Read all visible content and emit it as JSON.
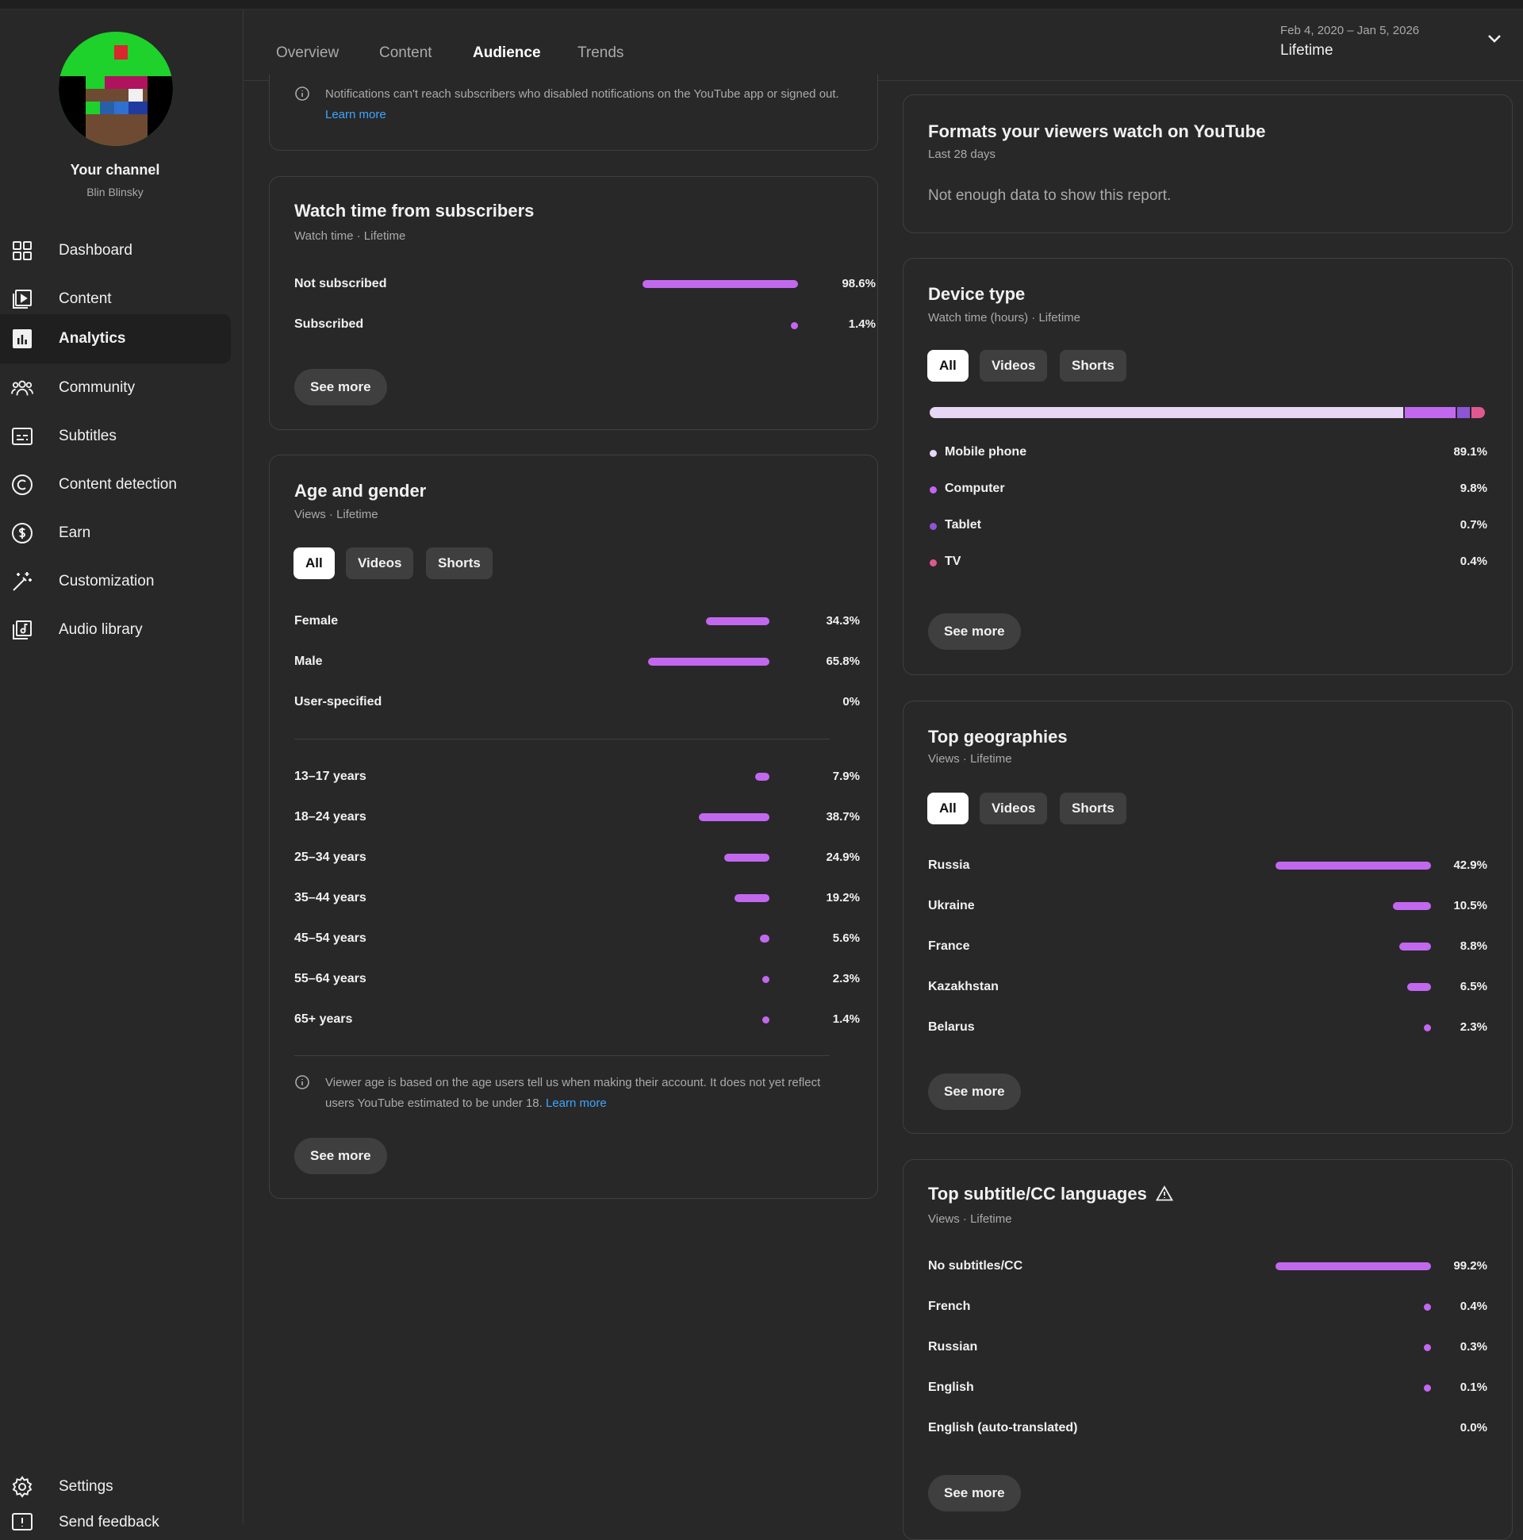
{
  "sidebar": {
    "channel_title": "Your channel",
    "channel_name": "Blin Blinsky",
    "items": [
      {
        "label": "Dashboard",
        "icon": "dashboard-icon"
      },
      {
        "label": "Content",
        "icon": "content-icon"
      },
      {
        "label": "Analytics",
        "icon": "analytics-icon"
      },
      {
        "label": "Community",
        "icon": "community-icon"
      },
      {
        "label": "Subtitles",
        "icon": "subtitles-icon"
      },
      {
        "label": "Content detection",
        "icon": "copyright-icon"
      },
      {
        "label": "Earn",
        "icon": "dollar-icon"
      },
      {
        "label": "Customization",
        "icon": "magic-wand-icon"
      },
      {
        "label": "Audio library",
        "icon": "audio-library-icon"
      }
    ],
    "bottom": {
      "settings": "Settings",
      "feedback": "Send feedback"
    },
    "active_index": 2
  },
  "header": {
    "tabs": [
      "Overview",
      "Content",
      "Audience",
      "Trends"
    ],
    "active_tab": "Audience",
    "date_range": "Feb 4, 2020 – Jan 5, 2026",
    "period": "Lifetime"
  },
  "notif_card": {
    "text": "Notifications can't reach subscribers who disabled notifications on the YouTube app or signed out.",
    "link": "Learn more"
  },
  "watch_subs": {
    "title": "Watch time from subscribers",
    "subtitle": "Watch time · Lifetime",
    "rows": [
      {
        "label": "Not subscribed",
        "value": "98.6%",
        "pct": 98.6
      },
      {
        "label": "Subscribed",
        "value": "1.4%",
        "pct": 1.4
      }
    ],
    "button": "See more"
  },
  "age_gender": {
    "title": "Age and gender",
    "subtitle": "Views · Lifetime",
    "chips": [
      "All",
      "Videos",
      "Shorts"
    ],
    "gender": [
      {
        "label": "Female",
        "value": "34.3%",
        "pct": 34.3
      },
      {
        "label": "Male",
        "value": "65.8%",
        "pct": 65.8
      },
      {
        "label": "User-specified",
        "value": "0%",
        "pct": 0
      }
    ],
    "ages": [
      {
        "label": "13–17 years",
        "value": "7.9%",
        "pct": 7.9
      },
      {
        "label": "18–24 years",
        "value": "38.7%",
        "pct": 38.7
      },
      {
        "label": "25–34 years",
        "value": "24.9%",
        "pct": 24.9
      },
      {
        "label": "35–44 years",
        "value": "19.2%",
        "pct": 19.2
      },
      {
        "label": "45–54 years",
        "value": "5.6%",
        "pct": 5.6
      },
      {
        "label": "55–64 years",
        "value": "2.3%",
        "pct": 2.3
      },
      {
        "label": "65+ years",
        "value": "1.4%",
        "pct": 1.4
      }
    ],
    "note": "Viewer age is based on the age users tell us when making their account. It does not yet reflect users YouTube estimated to be under 18.",
    "note_link": "Learn more",
    "button": "See more"
  },
  "formats": {
    "title": "Formats your viewers watch on YouTube",
    "subtitle": "Last 28 days",
    "message": "Not enough data to show this report."
  },
  "device": {
    "title": "Device type",
    "subtitle": "Watch time (hours) · Lifetime",
    "chips": [
      "All",
      "Videos",
      "Shorts"
    ],
    "rows": [
      {
        "label": "Mobile phone",
        "value": "89.1%",
        "pct": 89.1,
        "color": "#e8d6f5"
      },
      {
        "label": "Computer",
        "value": "9.8%",
        "pct": 9.8,
        "color": "#c268ef"
      },
      {
        "label": "Tablet",
        "value": "0.7%",
        "pct": 0.7,
        "color": "#8e54d6"
      },
      {
        "label": "TV",
        "value": "0.4%",
        "pct": 0.4,
        "color": "#e0588f"
      }
    ],
    "button": "See more"
  },
  "geo": {
    "title": "Top geographies",
    "subtitle": "Views · Lifetime",
    "chips": [
      "All",
      "Videos",
      "Shorts"
    ],
    "rows": [
      {
        "label": "Russia",
        "value": "42.9%",
        "pct": 42.9
      },
      {
        "label": "Ukraine",
        "value": "10.5%",
        "pct": 10.5
      },
      {
        "label": "France",
        "value": "8.8%",
        "pct": 8.8
      },
      {
        "label": "Kazakhstan",
        "value": "6.5%",
        "pct": 6.5
      },
      {
        "label": "Belarus",
        "value": "2.3%",
        "pct": 2.3
      }
    ],
    "button": "See more"
  },
  "subs_lang": {
    "title": "Top subtitle/CC languages",
    "subtitle": "Views · Lifetime",
    "rows": [
      {
        "label": "No subtitles/CC",
        "value": "99.2%",
        "pct": 99.2
      },
      {
        "label": "French",
        "value": "0.4%",
        "pct": 0.4
      },
      {
        "label": "Russian",
        "value": "0.3%",
        "pct": 0.3
      },
      {
        "label": "English",
        "value": "0.1%",
        "pct": 0.1
      },
      {
        "label": "English (auto-translated)",
        "value": "0.0%",
        "pct": 0.0
      }
    ],
    "button": "See more"
  },
  "colors": {
    "accent": "#c268ef",
    "link": "#3ea6ff",
    "background": "#282828"
  }
}
